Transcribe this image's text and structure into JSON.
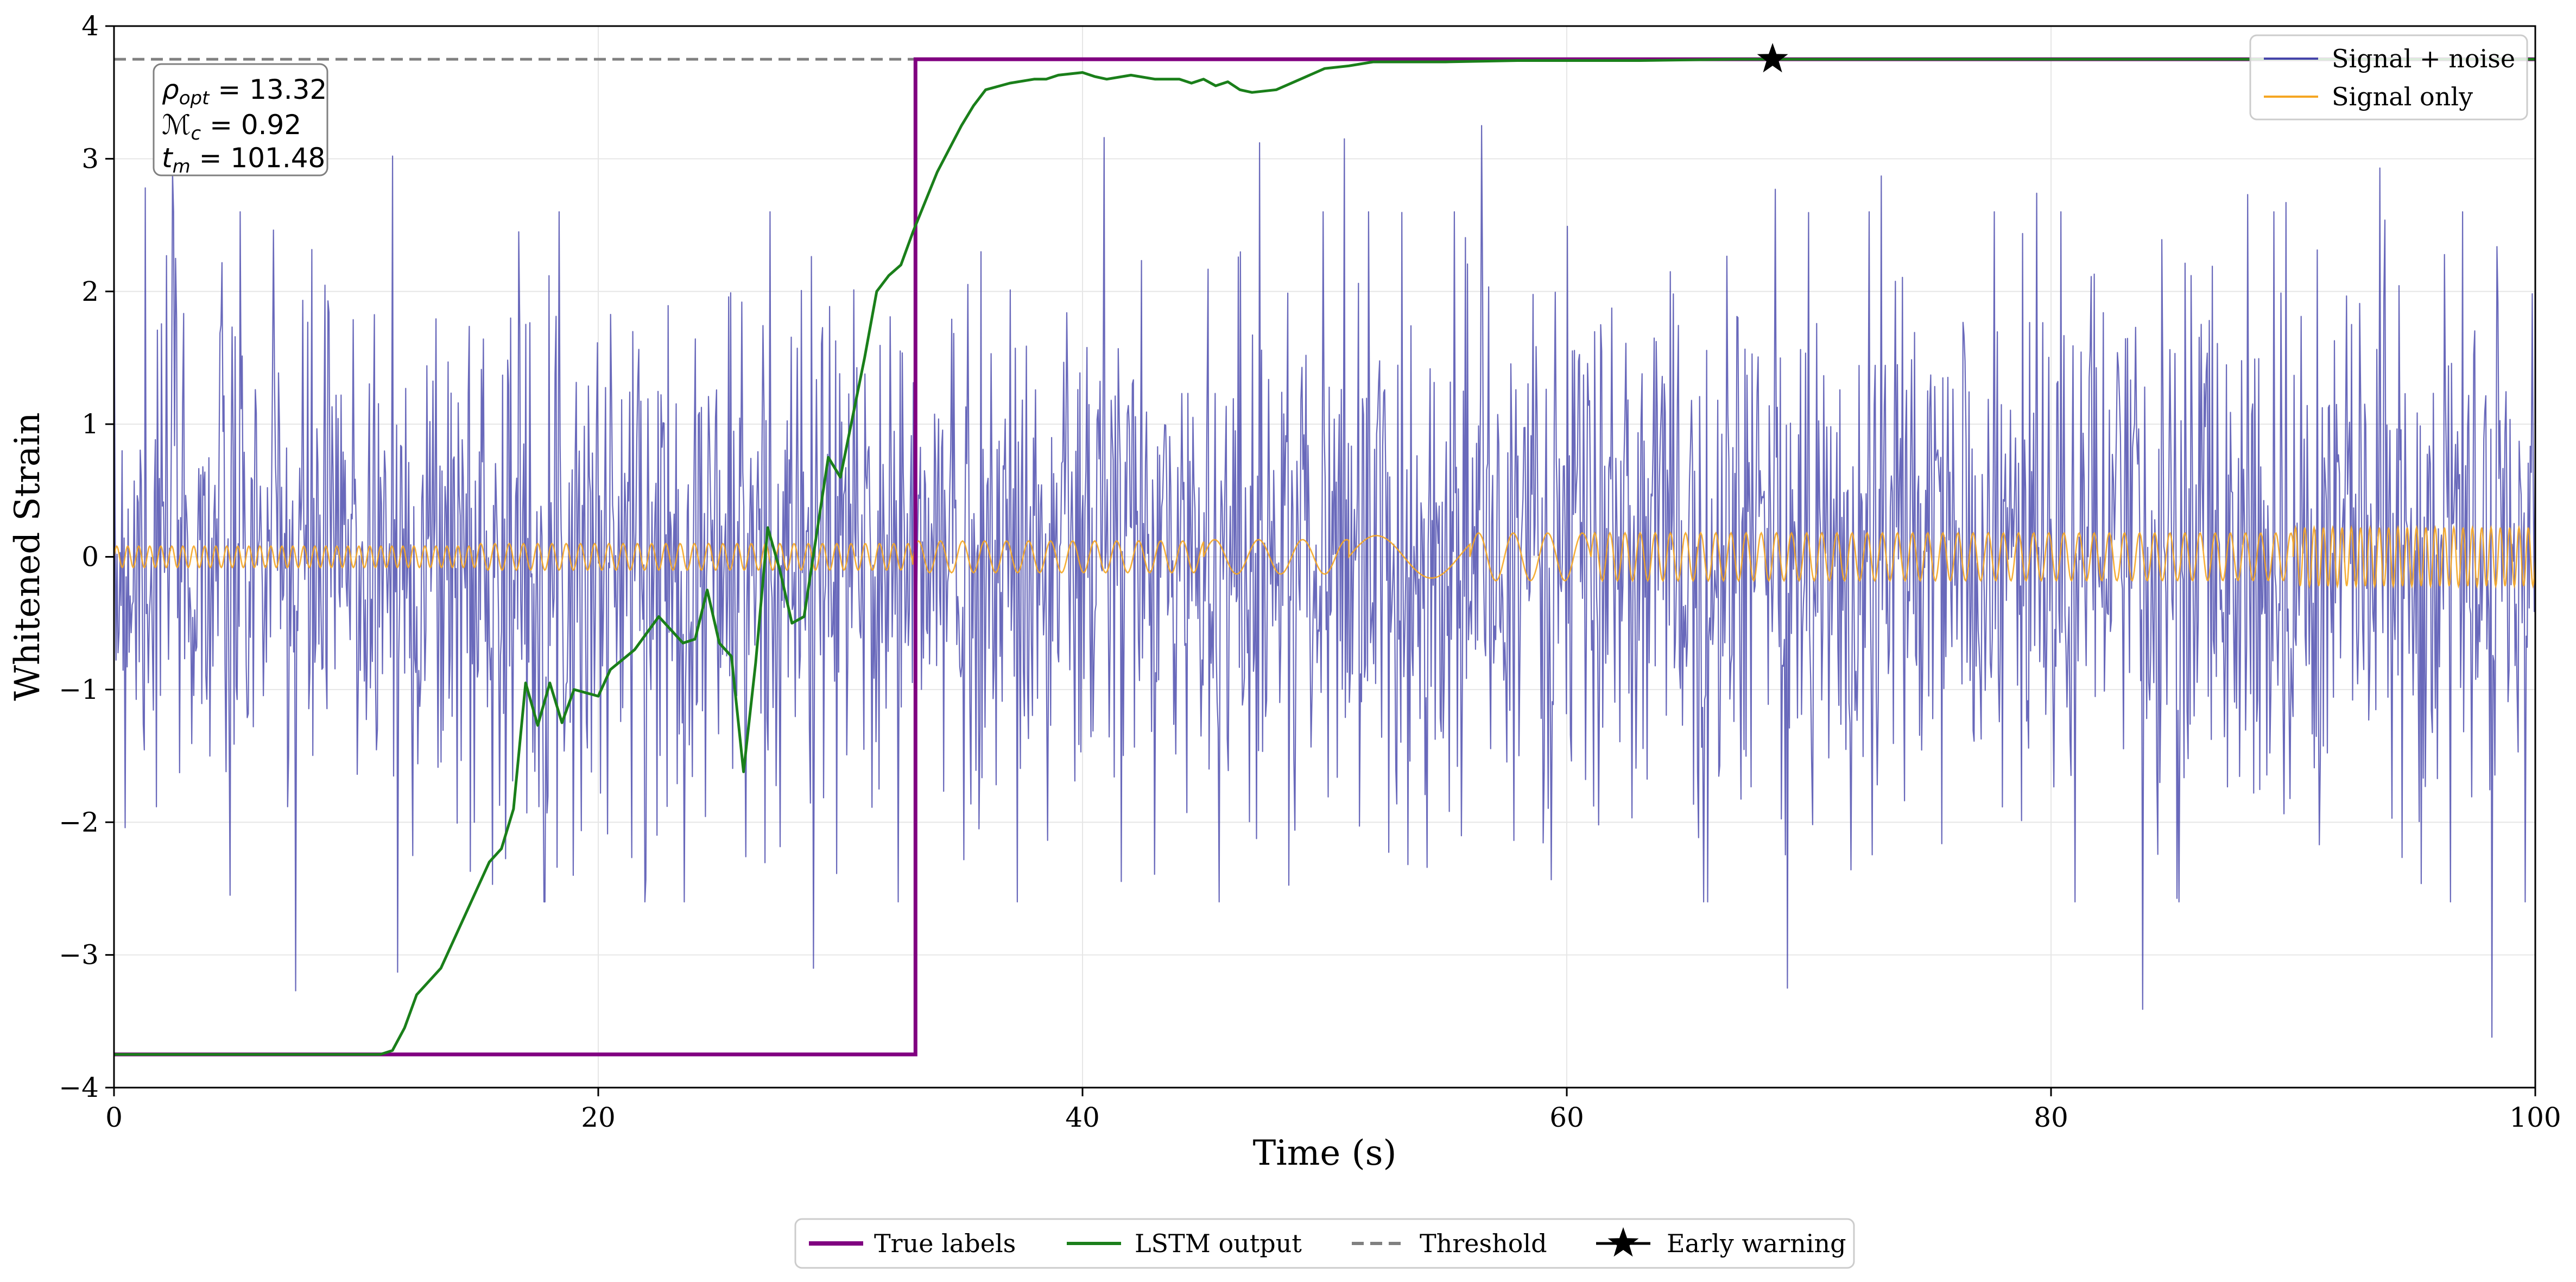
{
  "chart_data": {
    "type": "line",
    "title": "",
    "xlabel": "Time (s)",
    "ylabel": "Whitened Strain",
    "xlim": [
      0,
      100
    ],
    "ylim": [
      -4,
      4
    ],
    "x_ticks": [
      0,
      20,
      40,
      60,
      80,
      100
    ],
    "x_tick_labels": [
      "0",
      "20",
      "40",
      "60",
      "80",
      "100"
    ],
    "y_ticks": [
      -4,
      -3,
      -2,
      -1,
      0,
      1,
      2,
      3,
      4
    ],
    "y_tick_labels": [
      "−4",
      "−3",
      "−2",
      "−1",
      "0",
      "1",
      "2",
      "3",
      "4"
    ],
    "grid": true,
    "noise": {
      "name": "Signal + noise",
      "color": "#4444aa",
      "x_range": [
        0,
        100
      ],
      "std": 1.0,
      "samples": 2400,
      "seed": 7,
      "spikes": [
        {
          "x": 1.3,
          "y": 2.78
        },
        {
          "x": 2.4,
          "y": 2.9
        },
        {
          "x": 4.8,
          "y": -2.55
        },
        {
          "x": 7.5,
          "y": -3.27
        },
        {
          "x": 11.5,
          "y": 3.02
        },
        {
          "x": 11.7,
          "y": -3.13
        },
        {
          "x": 14.9,
          "y": -2.0
        },
        {
          "x": 26.1,
          "y": -2.26
        },
        {
          "x": 28.9,
          "y": -3.1
        },
        {
          "x": 40.9,
          "y": 3.16
        },
        {
          "x": 47.3,
          "y": 3.12
        },
        {
          "x": 50.8,
          "y": 3.15
        },
        {
          "x": 56.5,
          "y": 3.25
        },
        {
          "x": 68.6,
          "y": 2.77
        },
        {
          "x": 69.1,
          "y": -3.25
        },
        {
          "x": 73.0,
          "y": 2.87
        },
        {
          "x": 79.4,
          "y": 2.74
        },
        {
          "x": 83.8,
          "y": -3.41
        },
        {
          "x": 88.1,
          "y": 2.73
        },
        {
          "x": 89.7,
          "y": 2.67
        },
        {
          "x": 93.6,
          "y": 2.93
        },
        {
          "x": 98.2,
          "y": -3.62
        }
      ]
    },
    "signal": {
      "name": "Signal only",
      "color": "#f5a623",
      "segments": [
        {
          "x": [
            0,
            15
          ],
          "amp": 0.08,
          "freq": 2.2
        },
        {
          "x": [
            15,
            33
          ],
          "amp": 0.1,
          "freq": 1.7
        },
        {
          "x": [
            33,
            45
          ],
          "amp": 0.12,
          "freq": 1.1
        },
        {
          "x": [
            45,
            51
          ],
          "amp": 0.13,
          "freq": 0.55
        },
        {
          "x": [
            51,
            56
          ],
          "amp": 0.16,
          "freq": 0.22
        },
        {
          "x": [
            56,
            61
          ],
          "amp": 0.18,
          "freq": 0.7
        },
        {
          "x": [
            61,
            90
          ],
          "amp": 0.18,
          "freq": 1.6
        },
        {
          "x": [
            90,
            100
          ],
          "amp": 0.22,
          "freq": 2.6
        }
      ]
    },
    "true_labels": {
      "name": "True labels",
      "color": "#800080",
      "x": [
        0,
        33.1,
        33.1,
        100
      ],
      "y": [
        -3.75,
        -3.75,
        3.75,
        3.75
      ]
    },
    "lstm_output": {
      "name": "LSTM output",
      "color": "#1a7f1a",
      "x": [
        0,
        11.0,
        11.5,
        12.0,
        12.5,
        13.5,
        14.5,
        15.0,
        15.5,
        16.0,
        16.5,
        17.0,
        17.5,
        18.0,
        18.5,
        19.0,
        20.0,
        20.5,
        21.5,
        22.5,
        23.5,
        24.0,
        24.5,
        25.0,
        25.5,
        26.0,
        26.5,
        27.0,
        27.5,
        28.0,
        28.5,
        29.0,
        29.5,
        30.0,
        31.0,
        31.5,
        32.0,
        32.5,
        33.0,
        34.0,
        35.0,
        35.5,
        36.0,
        37.0,
        38.0,
        38.5,
        39.0,
        40.0,
        40.5,
        41.0,
        42.0,
        43.0,
        44.0,
        44.5,
        45.0,
        45.5,
        46.0,
        46.5,
        47.0,
        48.0,
        49.0,
        50.0,
        51.0,
        52.0,
        55.0,
        58.0,
        60.0,
        63.0,
        67.0,
        72.0,
        100
      ],
      "y": [
        -3.75,
        -3.75,
        -3.72,
        -3.55,
        -3.3,
        -3.1,
        -2.7,
        -2.5,
        -2.3,
        -2.2,
        -1.9,
        -0.95,
        -1.27,
        -0.95,
        -1.25,
        -1.0,
        -1.05,
        -0.85,
        -0.7,
        -0.45,
        -0.65,
        -0.62,
        -0.25,
        -0.65,
        -0.75,
        -1.62,
        -0.8,
        0.22,
        -0.1,
        -0.5,
        -0.45,
        0.15,
        0.75,
        0.6,
        1.5,
        2.0,
        2.12,
        2.2,
        2.45,
        2.9,
        3.25,
        3.4,
        3.52,
        3.57,
        3.6,
        3.6,
        3.63,
        3.65,
        3.62,
        3.6,
        3.63,
        3.6,
        3.6,
        3.57,
        3.6,
        3.55,
        3.58,
        3.52,
        3.5,
        3.52,
        3.6,
        3.68,
        3.7,
        3.73,
        3.73,
        3.74,
        3.74,
        3.74,
        3.75,
        3.75,
        3.75
      ]
    },
    "threshold": {
      "name": "Threshold",
      "y": 3.75,
      "color": "#808080"
    },
    "early_warning": {
      "name": "Early warning",
      "x": 68.5,
      "y": 3.75,
      "color": "#000000"
    },
    "annotation": {
      "lines": [
        {
          "symbol": "ρ",
          "subscript": "opt",
          "value": " = 13.32"
        },
        {
          "symbol": "ℳ",
          "subscript": "c",
          "value": " = 0.92"
        },
        {
          "symbol": "t",
          "subscript": "m",
          "value": " = 101.48"
        }
      ]
    },
    "legend_inner": [
      "Signal + noise",
      "Signal only"
    ],
    "legend_inner_position": "top-right",
    "legend_outer": [
      "True labels",
      "LSTM output",
      "Threshold",
      "Early warning"
    ],
    "legend_outer_position": "bottom-center"
  }
}
